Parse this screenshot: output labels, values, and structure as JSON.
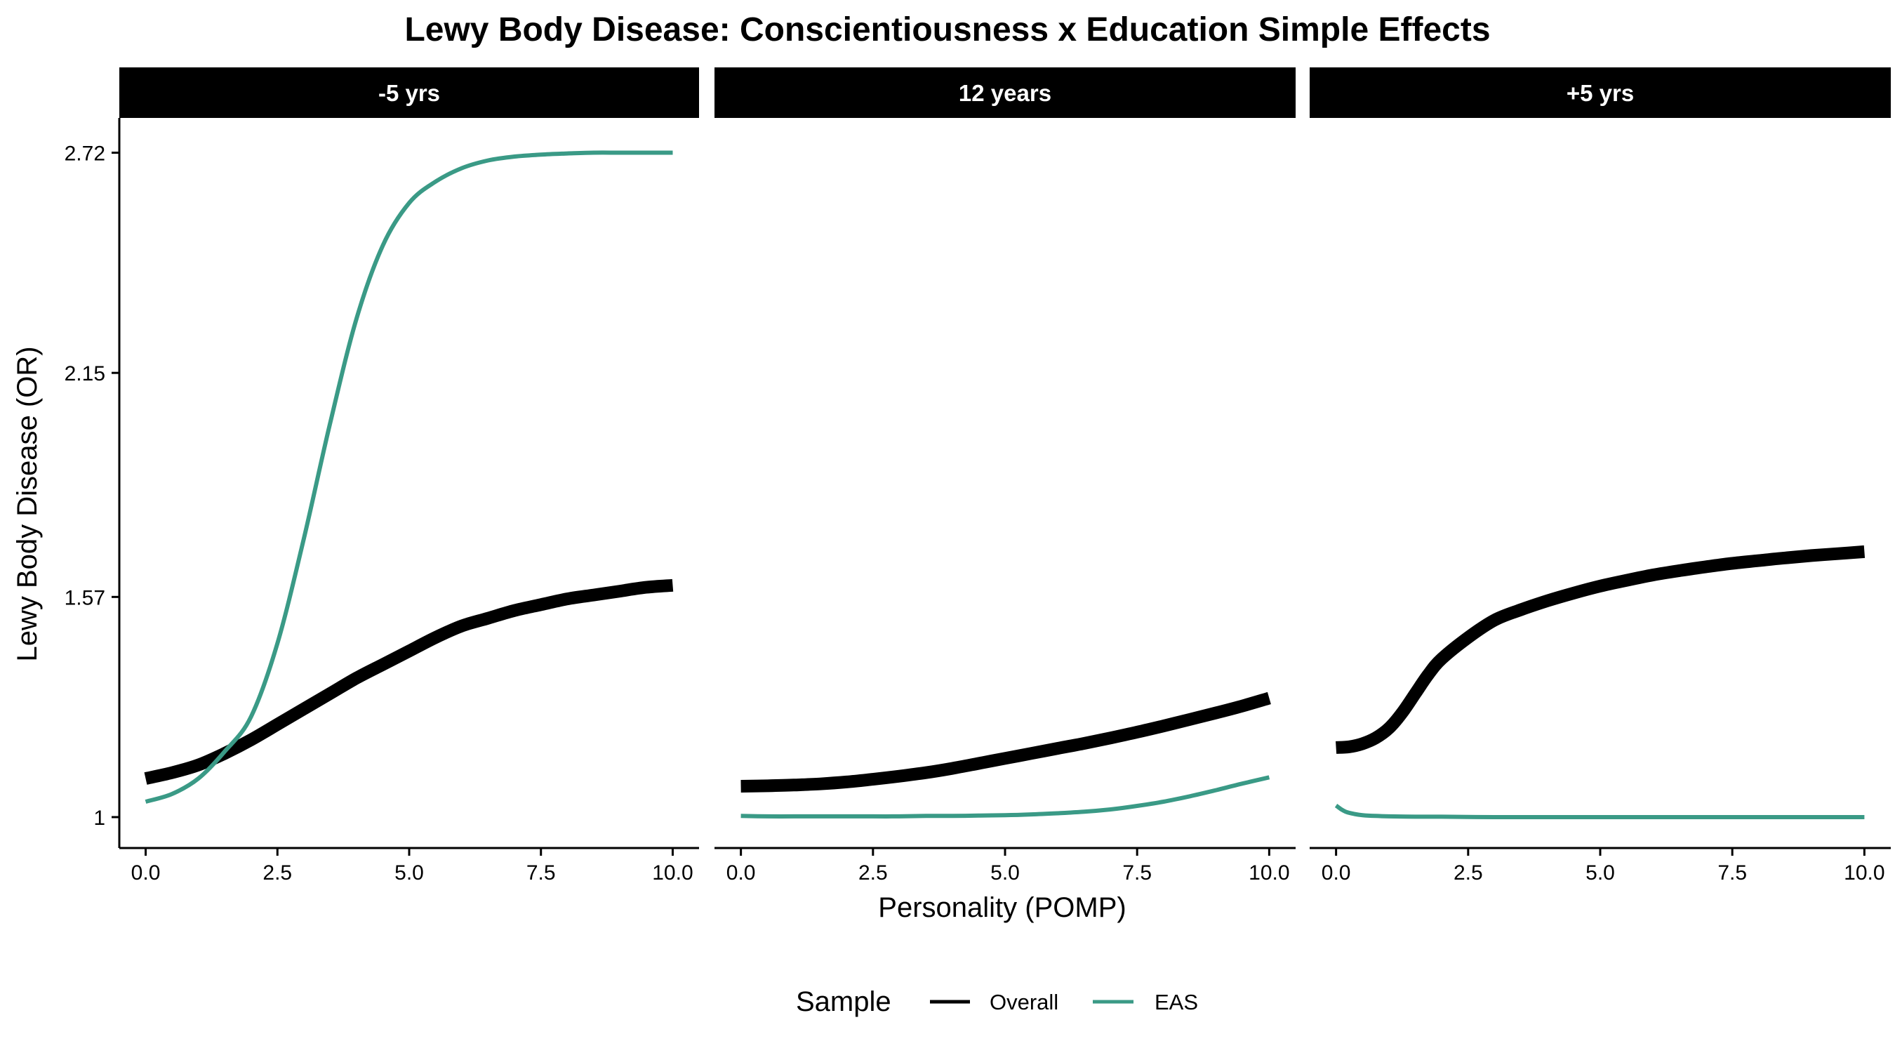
{
  "chart_data": {
    "type": "line",
    "title": "Lewy Body Disease: Conscientiousness x Education Simple Effects",
    "xlabel": "Personality (POMP)",
    "ylabel": "Lewy Body Disease (OR)",
    "xlim": [
      -0.5,
      10.5
    ],
    "ylim": [
      0.92,
      2.81
    ],
    "x_ticks": [
      0,
      2.5,
      5,
      7.5,
      10
    ],
    "x_tick_labels": [
      "0.0",
      "2.5",
      "5.0",
      "7.5",
      "10.0"
    ],
    "y_ticks": [
      1,
      1.57,
      2.15,
      2.72
    ],
    "y_tick_labels": [
      "1",
      "1.57",
      "2.15",
      "2.72"
    ],
    "grid": false,
    "legend": {
      "title": "Sample",
      "position": "bottom",
      "entries": [
        {
          "label": "Overall",
          "color": "#000000"
        },
        {
          "label": "EAS",
          "color": "#3a9a86"
        }
      ]
    },
    "series_styles": {
      "Overall": {
        "color": "#000000",
        "width": 18
      },
      "EAS": {
        "color": "#3a9a86",
        "width": 6
      }
    },
    "panels": [
      {
        "label": "-5 yrs",
        "series": [
          {
            "name": "Overall",
            "x": [
              0,
              0.5,
              1,
              1.5,
              2,
              2.5,
              3,
              3.5,
              4,
              4.5,
              5,
              5.5,
              6,
              6.5,
              7,
              7.5,
              8,
              8.5,
              9,
              9.5,
              10
            ],
            "y": [
              1.1,
              1.115,
              1.135,
              1.165,
              1.2,
              1.24,
              1.28,
              1.32,
              1.36,
              1.395,
              1.43,
              1.465,
              1.495,
              1.515,
              1.535,
              1.55,
              1.565,
              1.575,
              1.585,
              1.595,
              1.6
            ]
          },
          {
            "name": "EAS",
            "x": [
              0,
              0.5,
              1,
              1.5,
              2,
              2.5,
              3,
              3.5,
              4,
              4.5,
              5,
              5.5,
              6,
              6.5,
              7,
              7.5,
              8,
              8.5,
              9,
              9.5,
              10
            ],
            "y": [
              1.04,
              1.06,
              1.1,
              1.17,
              1.26,
              1.45,
              1.72,
              2.02,
              2.29,
              2.48,
              2.59,
              2.645,
              2.68,
              2.7,
              2.71,
              2.715,
              2.718,
              2.72,
              2.72,
              2.72,
              2.72
            ]
          }
        ]
      },
      {
        "label": "12 years",
        "series": [
          {
            "name": "Overall",
            "x": [
              0,
              0.5,
              1,
              1.5,
              2,
              2.5,
              3,
              3.5,
              4,
              4.5,
              5,
              5.5,
              6,
              6.5,
              7,
              7.5,
              8,
              8.5,
              9,
              9.5,
              10
            ],
            "y": [
              1.08,
              1.081,
              1.083,
              1.086,
              1.091,
              1.098,
              1.106,
              1.115,
              1.126,
              1.139,
              1.152,
              1.165,
              1.178,
              1.191,
              1.205,
              1.22,
              1.236,
              1.253,
              1.27,
              1.288,
              1.308
            ]
          },
          {
            "name": "EAS",
            "x": [
              0,
              0.5,
              1,
              1.5,
              2,
              2.5,
              3,
              3.5,
              4,
              4.5,
              5,
              5.5,
              6,
              6.5,
              7,
              7.5,
              8,
              8.5,
              9,
              9.5,
              10
            ],
            "y": [
              1.003,
              1.002,
              1.002,
              1.002,
              1.002,
              1.002,
              1.002,
              1.003,
              1.003,
              1.004,
              1.005,
              1.007,
              1.01,
              1.014,
              1.02,
              1.029,
              1.04,
              1.054,
              1.07,
              1.087,
              1.103
            ]
          }
        ]
      },
      {
        "label": "+5 yrs",
        "series": [
          {
            "name": "Overall",
            "x": [
              0,
              0.25,
              0.5,
              0.75,
              1,
              1.25,
              1.5,
              1.75,
              2,
              2.5,
              3,
              3.5,
              4,
              4.5,
              5,
              5.5,
              6,
              6.5,
              7,
              7.5,
              8,
              8.5,
              9,
              9.5,
              10
            ],
            "y": [
              1.18,
              1.182,
              1.19,
              1.205,
              1.23,
              1.27,
              1.32,
              1.37,
              1.41,
              1.465,
              1.51,
              1.537,
              1.56,
              1.58,
              1.598,
              1.613,
              1.627,
              1.638,
              1.648,
              1.657,
              1.664,
              1.671,
              1.677,
              1.682,
              1.687
            ]
          },
          {
            "name": "EAS",
            "x": [
              0,
              0.1,
              0.2,
              0.35,
              0.5,
              0.75,
              1,
              1.5,
              2,
              3,
              4,
              5,
              6,
              7,
              8,
              9,
              10
            ],
            "y": [
              1.03,
              1.02,
              1.013,
              1.008,
              1.005,
              1.003,
              1.002,
              1.001,
              1.001,
              1.0,
              1.0,
              1.0,
              1.0,
              1.0,
              1.0,
              1.0,
              1.0
            ]
          }
        ]
      }
    ]
  }
}
